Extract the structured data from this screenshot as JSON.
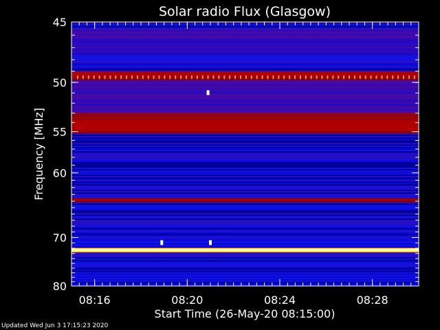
{
  "colors": {
    "background": "#000000",
    "axis": "#ffffff",
    "low": "#0000c8",
    "mid": "#8c0000",
    "high": "#ffff80"
  },
  "chart_data": {
    "type": "heatmap",
    "title": "Solar radio Flux (Glasgow)",
    "xlabel": "Start Time (26-May-20 08:15:00)",
    "ylabel": "Frequency [MHz]",
    "x_ticks": [
      "08:16",
      "08:20",
      "08:24",
      "08:28"
    ],
    "x_tick_minutes": [
      16,
      20,
      24,
      28
    ],
    "xlim_minutes": [
      15,
      30
    ],
    "y_ticks": [
      "45",
      "50",
      "55",
      "60",
      "70",
      "80"
    ],
    "y_tick_values": [
      45,
      50,
      55,
      60,
      70,
      80
    ],
    "ylim": [
      45,
      80
    ],
    "y_scale": "reciprocal",
    "grid": false,
    "bands": [
      {
        "freq_start": 45.0,
        "freq_end": 45.5,
        "intensity": "low"
      },
      {
        "freq_start": 45.5,
        "freq_end": 47.5,
        "intensity": "low-mid"
      },
      {
        "freq_start": 47.5,
        "freq_end": 49.0,
        "intensity": "low"
      },
      {
        "freq_start": 49.0,
        "freq_end": 49.8,
        "intensity": "mid"
      },
      {
        "freq_start": 49.8,
        "freq_end": 53.0,
        "intensity": "low-mid"
      },
      {
        "freq_start": 53.0,
        "freq_end": 55.2,
        "intensity": "mid"
      },
      {
        "freq_start": 55.2,
        "freq_end": 63.5,
        "intensity": "low"
      },
      {
        "freq_start": 63.5,
        "freq_end": 64.2,
        "intensity": "mid"
      },
      {
        "freq_start": 64.2,
        "freq_end": 72.0,
        "intensity": "low"
      },
      {
        "freq_start": 72.0,
        "freq_end": 72.7,
        "intensity": "high"
      },
      {
        "freq_start": 72.7,
        "freq_end": 80.0,
        "intensity": "low"
      }
    ],
    "spikes_frequency_mhz": 49.5,
    "bursts": [
      {
        "minute": 18.9,
        "frequency": 71.0
      },
      {
        "minute": 21.0,
        "frequency": 71.0
      },
      {
        "minute": 20.9,
        "frequency": 51.0
      }
    ]
  },
  "footer": "Updated Wed Jun  3 17:15:23 2020"
}
